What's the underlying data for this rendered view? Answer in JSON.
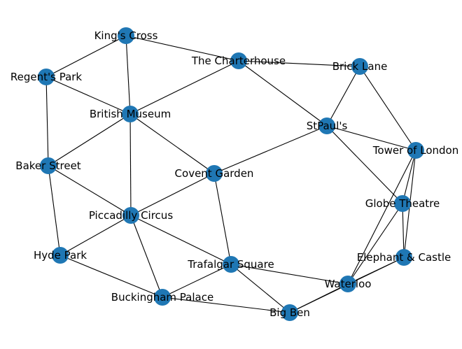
{
  "graph": {
    "node_color": "#1f77b4",
    "edge_color": "#000000",
    "nodes": [
      {
        "id": "kings_cross",
        "label": "King's Cross"
      },
      {
        "id": "charterhouse",
        "label": "The Charterhouse"
      },
      {
        "id": "brick_lane",
        "label": "Brick Lane"
      },
      {
        "id": "regents_park",
        "label": "Regent's Park"
      },
      {
        "id": "british_museum",
        "label": "British Museum"
      },
      {
        "id": "st_pauls",
        "label": "StPaul's"
      },
      {
        "id": "tower",
        "label": "Tower of London"
      },
      {
        "id": "baker_street",
        "label": "Baker Street"
      },
      {
        "id": "covent_garden",
        "label": "Covent Garden"
      },
      {
        "id": "globe",
        "label": "Globe Theatre"
      },
      {
        "id": "piccadilly",
        "label": "Piccadilly Circus"
      },
      {
        "id": "hyde_park",
        "label": "Hyde Park"
      },
      {
        "id": "elephant",
        "label": "Elephant & Castle"
      },
      {
        "id": "trafalgar",
        "label": "Trafalgar Square"
      },
      {
        "id": "waterloo",
        "label": "Waterloo"
      },
      {
        "id": "buckingham",
        "label": "Buckingham Palace"
      },
      {
        "id": "big_ben",
        "label": "Big Ben"
      }
    ],
    "edges": [
      [
        "kings_cross",
        "regents_park"
      ],
      [
        "kings_cross",
        "british_museum"
      ],
      [
        "kings_cross",
        "charterhouse"
      ],
      [
        "charterhouse",
        "brick_lane"
      ],
      [
        "charterhouse",
        "british_museum"
      ],
      [
        "charterhouse",
        "st_pauls"
      ],
      [
        "brick_lane",
        "st_pauls"
      ],
      [
        "brick_lane",
        "tower"
      ],
      [
        "regents_park",
        "british_museum"
      ],
      [
        "regents_park",
        "baker_street"
      ],
      [
        "british_museum",
        "baker_street"
      ],
      [
        "british_museum",
        "piccadilly"
      ],
      [
        "british_museum",
        "covent_garden"
      ],
      [
        "st_pauls",
        "tower"
      ],
      [
        "st_pauls",
        "covent_garden"
      ],
      [
        "st_pauls",
        "globe"
      ],
      [
        "tower",
        "globe"
      ],
      [
        "tower",
        "elephant"
      ],
      [
        "tower",
        "waterloo"
      ],
      [
        "baker_street",
        "piccadilly"
      ],
      [
        "baker_street",
        "hyde_park"
      ],
      [
        "covent_garden",
        "piccadilly"
      ],
      [
        "covent_garden",
        "trafalgar"
      ],
      [
        "globe",
        "elephant"
      ],
      [
        "globe",
        "waterloo"
      ],
      [
        "piccadilly",
        "hyde_park"
      ],
      [
        "piccadilly",
        "trafalgar"
      ],
      [
        "piccadilly",
        "buckingham"
      ],
      [
        "hyde_park",
        "buckingham"
      ],
      [
        "elephant",
        "waterloo"
      ],
      [
        "elephant",
        "big_ben"
      ],
      [
        "trafalgar",
        "waterloo"
      ],
      [
        "trafalgar",
        "buckingham"
      ],
      [
        "trafalgar",
        "big_ben"
      ],
      [
        "waterloo",
        "big_ben"
      ],
      [
        "buckingham",
        "big_ben"
      ]
    ]
  }
}
